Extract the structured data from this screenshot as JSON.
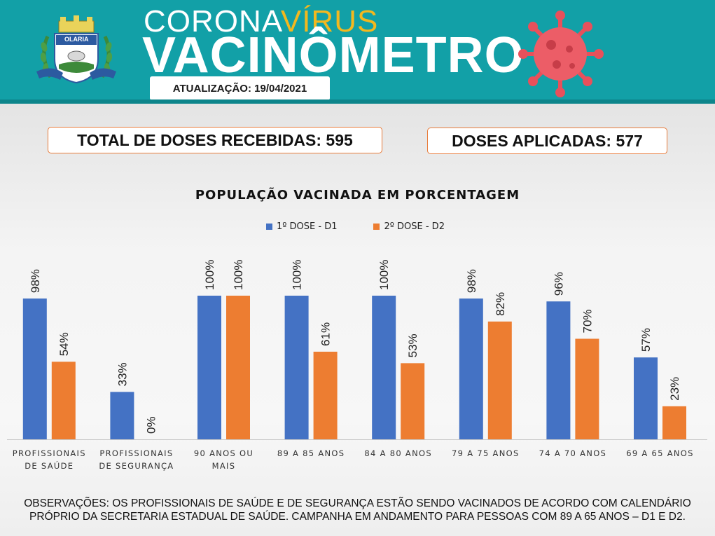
{
  "header": {
    "emblem_text": "OLARIA",
    "title_part1": "CORONA",
    "title_part2": "VÍRUS",
    "title_main": "VACINÔMETRO",
    "update_label": "ATUALIZAÇÃO: 19/04/2021"
  },
  "totals": {
    "received_label": "TOTAL DE DOSES RECEBIDAS: 595",
    "applied_label": "DOSES APLICADAS: 577"
  },
  "colors": {
    "banner": "#12a0a7",
    "title_accent": "#f3b81e",
    "virus": "#e8505b",
    "dose1": "#4472c4",
    "dose2": "#ed7d31",
    "box_border": "#e87b3a"
  },
  "chart_data": {
    "type": "bar",
    "title": "POPULAÇÃO VACINADA EM PORCENTAGEM",
    "legend_position": "top-center",
    "grid": false,
    "ylim": [
      0,
      100
    ],
    "categories": [
      [
        "PROFISSIONAIS",
        "DE SAÚDE"
      ],
      [
        "PROFISSIONAIS",
        "DE SEGURANÇA"
      ],
      [
        "90 ANOS OU",
        "MAIS"
      ],
      [
        "89 A 85 ANOS"
      ],
      [
        "84 A 80 ANOS"
      ],
      [
        "79 A 75 ANOS"
      ],
      [
        "74 A 70 ANOS"
      ],
      [
        "69 A 65 ANOS"
      ]
    ],
    "series": [
      {
        "name": "1º DOSE - D1",
        "values": [
          98,
          33,
          100,
          100,
          100,
          98,
          96,
          57
        ]
      },
      {
        "name": "2º DOSE - D2",
        "values": [
          54,
          0,
          100,
          61,
          53,
          82,
          70,
          23
        ]
      }
    ]
  },
  "footer": {
    "observation_line1": "OBSERVAÇÕES: OS PROFISSIONAIS DE SAÚDE E DE SEGURANÇA ESTÃO SENDO VACINADOS DE ACORDO COM CALENDÁRIO",
    "observation_line2": "PRÓPRIO DA SECRETARIA ESTADUAL DE SAÚDE. CAMPANHA EM ANDAMENTO PARA PESSOAS COM 89 A 65 ANOS – D1 E D2."
  }
}
